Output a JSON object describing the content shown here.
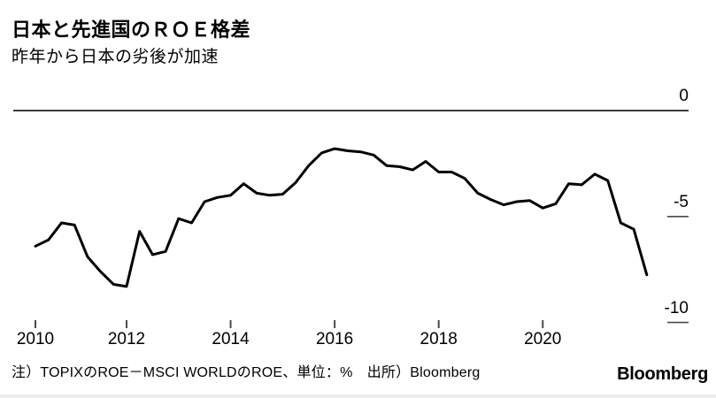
{
  "header": {
    "title": "日本と先進国のＲＯＥ格差",
    "subtitle": "昨年から日本の劣後が加速"
  },
  "footer": {
    "note": "注）TOPIXのROE－MSCI WORLDのROE、単位：%　出所）Bloomberg",
    "brand": "Bloomberg"
  },
  "chart_data": {
    "type": "line",
    "title": "日本と先進国のＲＯＥ格差",
    "subtitle": "昨年から日本の劣後が加速",
    "series_name": "TOPIXのROE－MSCI WORLDのROE",
    "unit": "%",
    "frequency": "quarterly",
    "start_year": 2010,
    "start_quarter": 2,
    "values": [
      -6.4,
      -6.1,
      -5.3,
      -5.4,
      -6.9,
      -7.6,
      -8.2,
      -8.3,
      -5.7,
      -6.8,
      -6.65,
      -5.1,
      -5.3,
      -4.3,
      -4.1,
      -4.0,
      -3.45,
      -3.9,
      -4.0,
      -3.95,
      -3.4,
      -2.6,
      -2.0,
      -1.8,
      -1.9,
      -1.95,
      -2.1,
      -2.6,
      -2.65,
      -2.8,
      -2.4,
      -2.9,
      -2.9,
      -3.2,
      -3.9,
      -4.2,
      -4.45,
      -4.3,
      -4.25,
      -4.6,
      -4.4,
      -3.45,
      -3.5,
      -3.0,
      -3.3,
      -5.3,
      -5.6,
      -7.75
    ],
    "x_ticks": [
      2010,
      2012,
      2014,
      2016,
      2018,
      2020
    ],
    "y_ticks": [
      0,
      -5,
      -10
    ],
    "ylim": [
      -10.8,
      0.3
    ],
    "xlim_years": [
      2010.25,
      2022.6
    ],
    "xlabel": "",
    "ylabel": "",
    "legend": "none",
    "grid": "zero-baseline-only",
    "line_color": "#000000",
    "axis_color": "#4a4a4a",
    "zero_line_color": "#3d3d3d"
  }
}
